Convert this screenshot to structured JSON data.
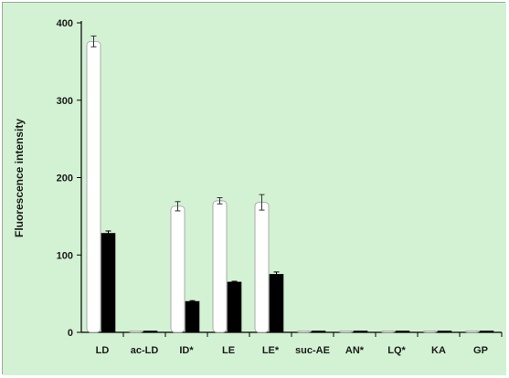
{
  "chart_data": {
    "type": "bar",
    "title": "",
    "xlabel": "",
    "ylabel": "Fluorescence intensity",
    "ylim": [
      0,
      400
    ],
    "yticks": [
      0,
      100,
      200,
      300,
      400
    ],
    "grid": false,
    "legend": "none",
    "categories": [
      "LD",
      "ac-LD",
      "ID*",
      "LE",
      "LE*",
      "suc-AE",
      "AN*",
      "LQ*",
      "KA",
      "GP"
    ],
    "series": [
      {
        "values": [
          376,
          0,
          163,
          170,
          168,
          0,
          0,
          0,
          0,
          0
        ],
        "errors": [
          7,
          0,
          6,
          4,
          10,
          0,
          0,
          0,
          0,
          0
        ],
        "color": "#ffffff"
      },
      {
        "values": [
          128,
          0,
          40,
          65,
          75,
          0,
          0,
          0,
          0,
          0
        ],
        "errors": [
          3,
          0,
          1,
          1,
          3,
          0,
          0,
          0,
          0,
          0
        ],
        "color": "#000000"
      }
    ]
  },
  "colors": {
    "background": "#d3f2d3",
    "axis": "#000000"
  }
}
